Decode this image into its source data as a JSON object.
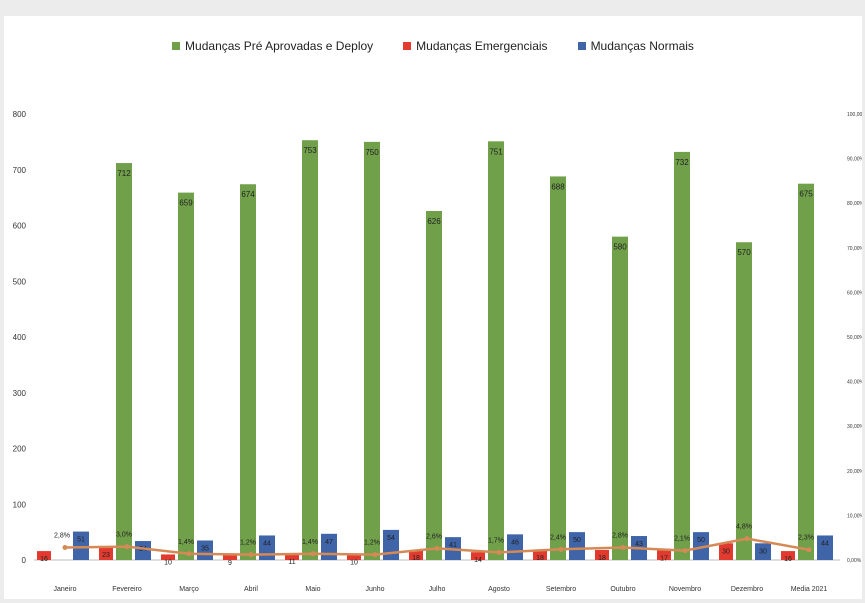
{
  "colors": {
    "preapproved": "#70A04A",
    "emergency": "#E23A2E",
    "normal": "#3F64A8",
    "line": "#D58A56"
  },
  "legend": [
    {
      "label": "Mudanças Pré Aprovadas e Deploy",
      "color": "#70A04A"
    },
    {
      "label": "Mudanças Emergenciais",
      "color": "#E23A2E"
    },
    {
      "label": "Mudanças Normais",
      "color": "#3F64A8"
    }
  ],
  "chart_data": {
    "type": "bar",
    "categories": [
      "Janeiro",
      "Fevereiro",
      "Março",
      "Abril",
      "Maio",
      "Junho",
      "Julho",
      "Agosto",
      "Setembro",
      "Outubro",
      "Novembro",
      "Dezembro",
      "Media 2021"
    ],
    "series": [
      {
        "name": "Mudanças Emergenciais",
        "type": "bar",
        "axis": "left",
        "values": [
          16,
          23,
          10,
          9,
          11,
          10,
          18,
          14,
          18,
          18,
          17,
          30,
          16
        ],
        "labels": [
          "16",
          "23",
          "10",
          "9",
          "11",
          "10",
          "18",
          "14",
          "18",
          "18",
          "17",
          "30",
          "16"
        ]
      },
      {
        "name": "Mudanças Pré Aprovadas e Deploy",
        "type": "bar",
        "axis": "left",
        "values": [
          null,
          712,
          659,
          674,
          753,
          750,
          626,
          751,
          688,
          580,
          732,
          570,
          675
        ],
        "labels": [
          "",
          "712",
          "659",
          "674",
          "753",
          "750",
          "626",
          "751",
          "688",
          "580",
          "732",
          "570",
          "675"
        ]
      },
      {
        "name": "Mudanças Normais",
        "type": "bar",
        "axis": "left",
        "values": [
          51,
          34,
          35,
          44,
          47,
          54,
          41,
          46,
          50,
          43,
          50,
          30,
          44
        ],
        "labels": [
          "51",
          "34",
          "35",
          "44",
          "47",
          "54",
          "41",
          "46",
          "50",
          "43",
          "50",
          "30",
          "44"
        ]
      },
      {
        "name": "",
        "type": "line",
        "axis": "right",
        "values": [
          2.8,
          3.0,
          1.4,
          1.2,
          1.4,
          1.2,
          2.6,
          1.7,
          2.4,
          2.8,
          2.1,
          4.8,
          2.3
        ],
        "labels": [
          "2,8%",
          "3,0%",
          "1,4%",
          "1,2%",
          "1,4%",
          "1,2%",
          "2,6%",
          "1,7%",
          "2,4%",
          "2,8%",
          "2,1%",
          "4,8%",
          "2,3%"
        ]
      }
    ],
    "ylim": [
      0,
      800
    ],
    "yticks": [
      "0",
      "100",
      "200",
      "300",
      "400",
      "500",
      "600",
      "700",
      "800"
    ],
    "y2lim": [
      0,
      100
    ],
    "y2ticks": [
      "0,00%",
      "10,00%",
      "20,00%",
      "30,00%",
      "40,00%",
      "50,00%",
      "60,00%",
      "70,00%",
      "80,00%",
      "90,00%",
      "100,00%"
    ],
    "title": "",
    "xlabel": "",
    "ylabel": "",
    "grid": false,
    "legend_position": "top"
  }
}
